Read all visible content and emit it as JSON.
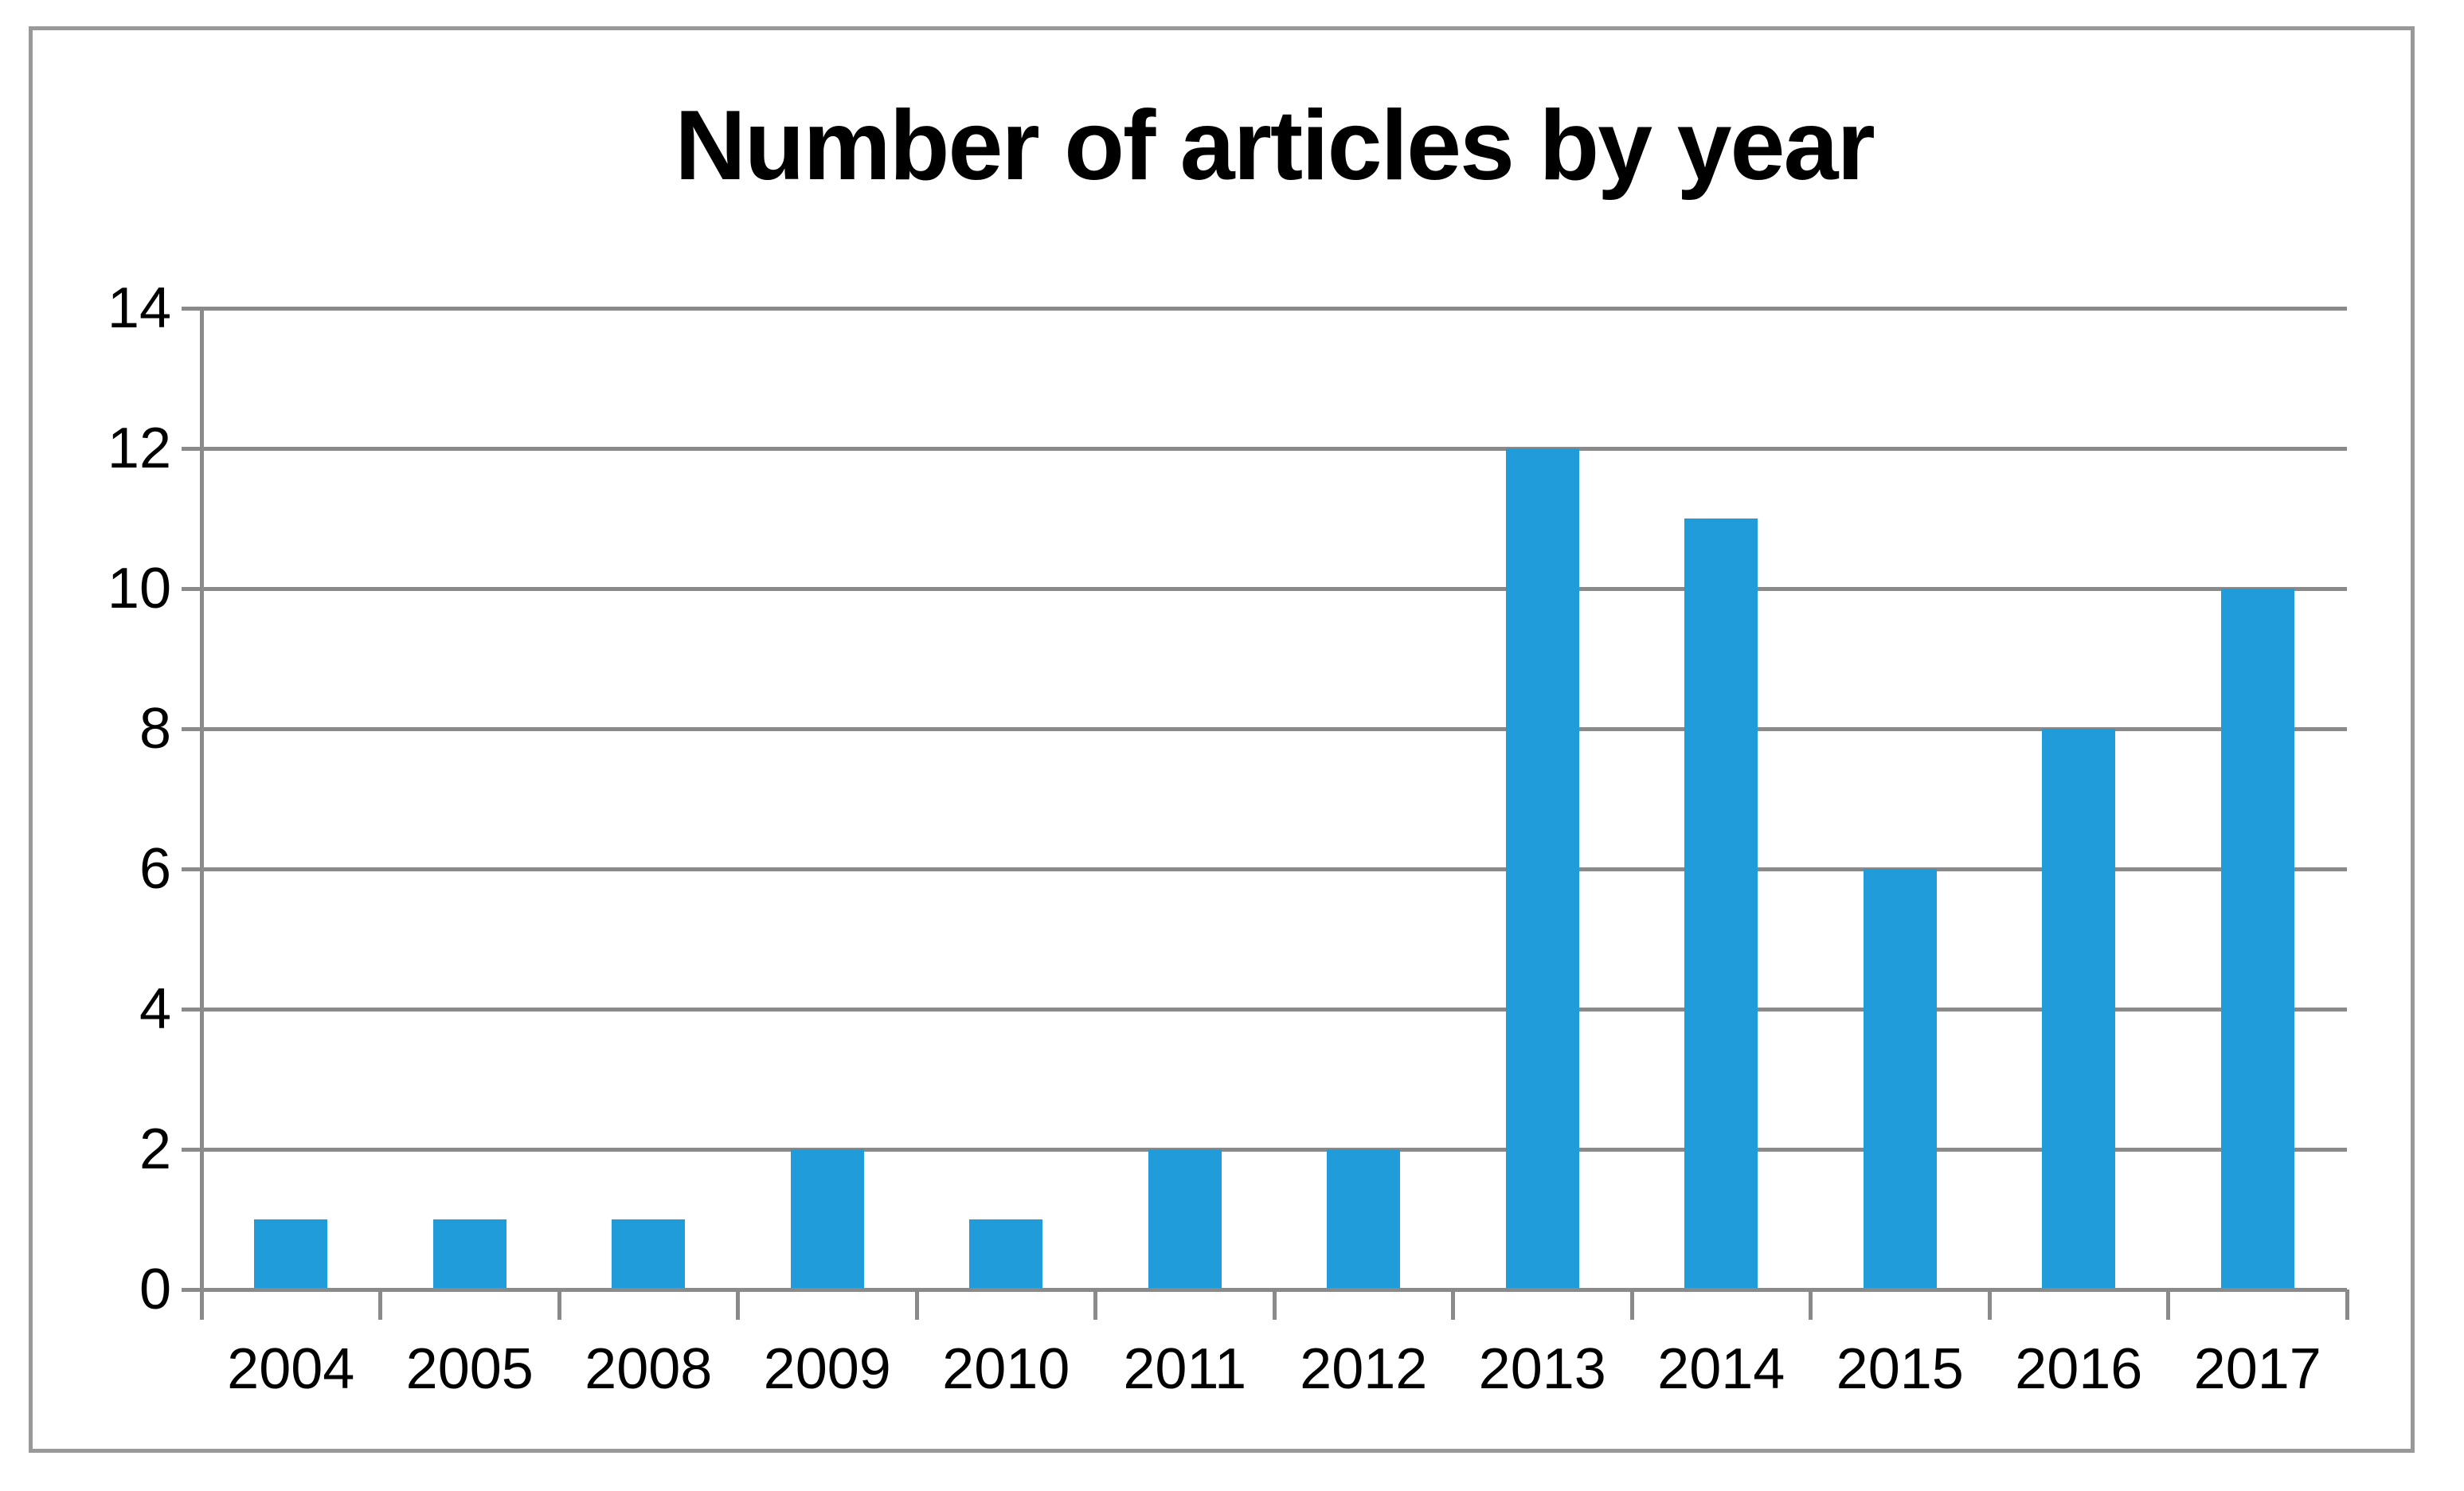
{
  "chart_data": {
    "type": "bar",
    "title": "Number of articles by year",
    "categories": [
      "2004",
      "2005",
      "2008",
      "2009",
      "2010",
      "2011",
      "2012",
      "2013",
      "2014",
      "2015",
      "2016",
      "2017"
    ],
    "values": [
      1,
      1,
      1,
      2,
      1,
      2,
      2,
      12,
      11,
      6,
      8,
      10
    ],
    "series_label": "Number of articles",
    "xlabel": "",
    "ylabel": "",
    "ylim": [
      0,
      14
    ],
    "y_ticks": [
      0,
      2,
      4,
      6,
      8,
      10,
      12,
      14
    ],
    "grid": "horizontal-major",
    "legend": "none",
    "colors": {
      "bar": "#1F9CD9",
      "grid": "#8A8A8A",
      "axis": "#8A8A8A",
      "tick": "#8A8A8A",
      "frame_border": "#999999",
      "text": "#000000",
      "background": "#FFFFFF"
    }
  }
}
